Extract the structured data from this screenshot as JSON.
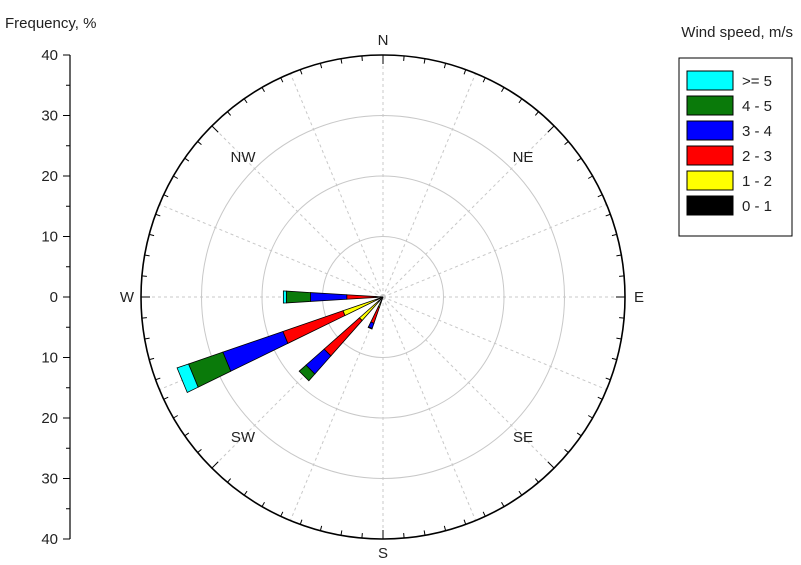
{
  "chart_data": {
    "type": "wind-rose",
    "ylabel": "Frequency, %",
    "legend_title": "Wind speed, m/s",
    "legend_placement": "top-right",
    "radial_axis": {
      "range": [
        0,
        40
      ],
      "tick_labels": [
        "40",
        "30",
        "20",
        "10",
        "0",
        "10",
        "20",
        "30",
        "40"
      ],
      "tick_values": [
        40,
        30,
        20,
        10,
        0,
        10,
        20,
        30,
        40
      ]
    },
    "rings": [
      10,
      20,
      30,
      40
    ],
    "directions": [
      {
        "label": "N",
        "angle": 0
      },
      {
        "label": "NE",
        "angle": 45
      },
      {
        "label": "E",
        "angle": 90
      },
      {
        "label": "SE",
        "angle": 135
      },
      {
        "label": "S",
        "angle": 180
      },
      {
        "label": "SW",
        "angle": 225
      },
      {
        "label": "W",
        "angle": 270
      },
      {
        "label": "NW",
        "angle": 315
      }
    ],
    "speed_bins": [
      {
        "name": ">= 5",
        "color": "#00ffff"
      },
      {
        "name": "4 - 5",
        "color": "#0a7a0a"
      },
      {
        "name": "3 - 4",
        "color": "#0000ff"
      },
      {
        "name": "2 - 3",
        "color": "#ff0000"
      },
      {
        "name": "1 - 2",
        "color": "#ffff00"
      },
      {
        "name": "0 - 1",
        "color": "#000000"
      }
    ],
    "petals": [
      {
        "direction_deg": 202.5,
        "cumulative": [
          1.0,
          1.8,
          4.6,
          5.5,
          5.6,
          5.6
        ]
      },
      {
        "direction_deg": 225.0,
        "cumulative": [
          1.0,
          5.2,
          13.0,
          17.0,
          18.5,
          18.5
        ]
      },
      {
        "direction_deg": 247.5,
        "cumulative": [
          1.0,
          7.0,
          17.5,
          28.0,
          34.0,
          36.0
        ]
      },
      {
        "direction_deg": 270.0,
        "cumulative": [
          1.0,
          1.2,
          6.0,
          12.0,
          16.0,
          16.5
        ]
      }
    ]
  }
}
